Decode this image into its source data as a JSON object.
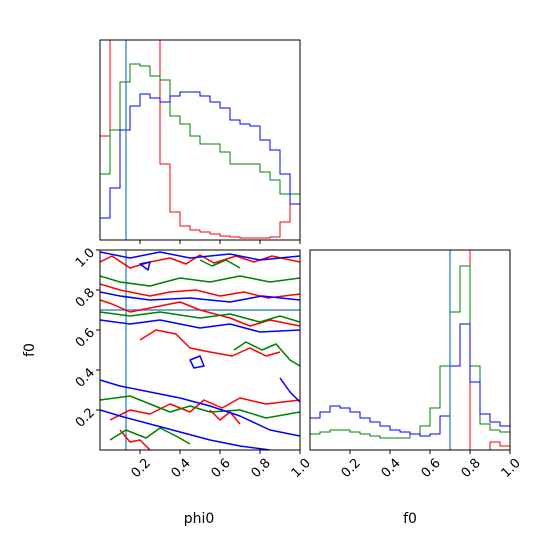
{
  "chart_data": {
    "type": "corner",
    "parameters": [
      "phi0",
      "f0"
    ],
    "truth": {
      "phi0": 0.13,
      "f0": 0.7
    },
    "series_colors": {
      "red": "#ff0000",
      "green": "#008000",
      "blue": "#0000ff",
      "truth": "#1f77b4"
    },
    "panels": [
      {
        "id": "phi0-marginal",
        "type": "histogram",
        "x": "phi0",
        "xlim": [
          0,
          1
        ],
        "bins": 20,
        "series": [
          {
            "color": "red",
            "counts": [
              0.52,
              1.0,
              1.0,
              1.0,
              1.0,
              1.0,
              0.38,
              0.14,
              0.07,
              0.05,
              0.04,
              0.03,
              0.02,
              0.015,
              0.01,
              0.01,
              0.01,
              0.015,
              0.09,
              0.23
            ]
          },
          {
            "color": "green",
            "counts": [
              0.33,
              0.55,
              0.79,
              0.88,
              0.87,
              0.82,
              0.8,
              0.62,
              0.58,
              0.52,
              0.48,
              0.48,
              0.44,
              0.38,
              0.38,
              0.38,
              0.34,
              0.3,
              0.23,
              0.23
            ]
          },
          {
            "color": "blue",
            "counts": [
              0.11,
              0.26,
              0.55,
              0.67,
              0.73,
              0.71,
              0.69,
              0.72,
              0.74,
              0.74,
              0.72,
              0.69,
              0.66,
              0.6,
              0.58,
              0.57,
              0.5,
              0.45,
              0.33,
              0.18
            ]
          }
        ]
      },
      {
        "id": "phi0-f0-contours",
        "type": "contour",
        "x": "phi0",
        "y": "f0",
        "xlim": [
          0,
          1
        ],
        "ylim": [
          0,
          1
        ]
      },
      {
        "id": "f0-marginal",
        "type": "histogram",
        "x": "f0",
        "xlim": [
          0,
          1
        ],
        "bins": 20,
        "series": [
          {
            "color": "red",
            "counts": [
              0.0,
              0.0,
              0.0,
              0.0,
              0.0,
              0.0,
              0.0,
              0.0,
              0.0,
              0.0,
              0.0,
              0.0,
              0.0,
              0.0,
              1.0,
              1.0,
              0.0,
              0.0,
              0.04,
              0.02
            ]
          },
          {
            "color": "green",
            "counts": [
              0.08,
              0.09,
              0.1,
              0.1,
              0.09,
              0.08,
              0.07,
              0.06,
              0.06,
              0.06,
              0.08,
              0.12,
              0.21,
              0.42,
              0.69,
              0.92,
              0.42,
              0.13,
              0.1,
              0.09
            ]
          },
          {
            "color": "blue",
            "counts": [
              0.16,
              0.19,
              0.22,
              0.21,
              0.19,
              0.16,
              0.14,
              0.12,
              0.1,
              0.09,
              0.08,
              0.07,
              0.08,
              0.17,
              0.42,
              0.63,
              0.34,
              0.18,
              0.14,
              0.12
            ]
          }
        ]
      }
    ],
    "axes": {
      "phi0": {
        "label": "phi0",
        "ticks": [
          "0.2",
          "0.4",
          "0.6",
          "0.8",
          "1.0"
        ],
        "tick_values": [
          0.2,
          0.4,
          0.6,
          0.8,
          1.0
        ]
      },
      "f0": {
        "label": "f0",
        "ticks": [
          "0.2",
          "0.4",
          "0.6",
          "0.8",
          "1.0"
        ],
        "tick_values": [
          0.2,
          0.4,
          0.6,
          0.8,
          1.0
        ]
      }
    },
    "grid": false
  }
}
